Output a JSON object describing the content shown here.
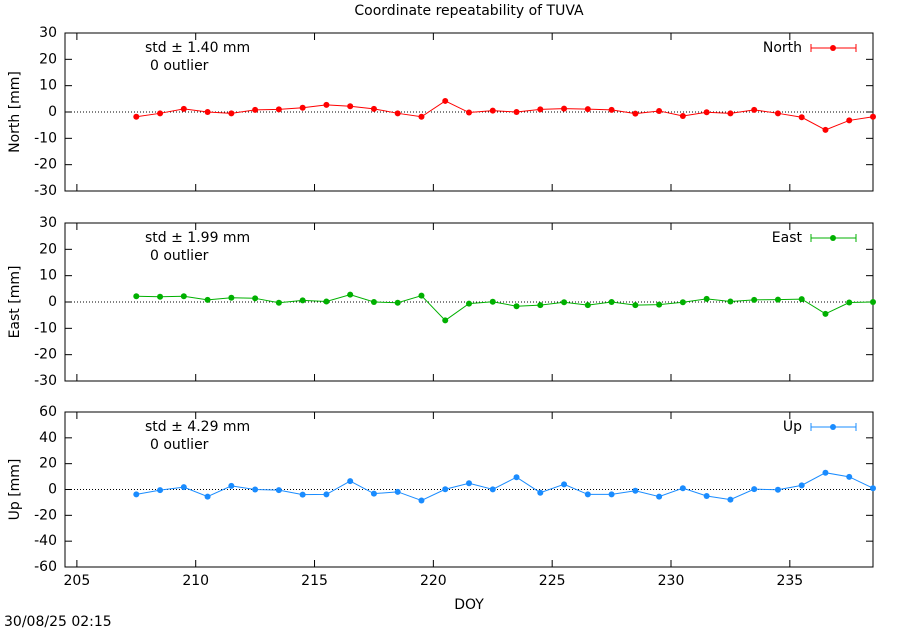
{
  "title": "Coordinate repeatability of TUVA",
  "timestamp": "30/08/25 02:15",
  "chart_data": [
    {
      "type": "line",
      "ylabel": "North [mm]",
      "annotations": [
        "std ± 1.40 mm",
        "0 outlier"
      ],
      "zero_line": true,
      "xlim": [
        204.5,
        238.5
      ],
      "ylim": [
        -30,
        30
      ],
      "yticks": [
        -30,
        -20,
        -10,
        0,
        10,
        20,
        30
      ],
      "legend": "top-right",
      "x": [
        207.5,
        208.5,
        209.5,
        210.5,
        211.5,
        212.5,
        213.5,
        214.5,
        215.5,
        216.5,
        217.5,
        218.5,
        219.5,
        220.5,
        221.5,
        222.5,
        223.5,
        224.5,
        225.5,
        226.5,
        227.5,
        228.5,
        229.5,
        230.5,
        231.5,
        232.5,
        233.5,
        234.5,
        235.5,
        236.5,
        237.5,
        238.5
      ],
      "series": [
        {
          "name": "North",
          "color": "#ff0000",
          "values": [
            -1.8,
            -0.5,
            1.2,
            0,
            -0.5,
            0.8,
            1,
            1.6,
            2.7,
            2.2,
            1.2,
            -0.5,
            -1.8,
            4.2,
            -0.2,
            0.5,
            0,
            1,
            1.3,
            1.1,
            0.8,
            -0.6,
            0.4,
            -1.5,
            -0.1,
            -0.5,
            0.8,
            -0.5,
            -2,
            -6.8,
            -3.2,
            -1.8
          ]
        }
      ]
    },
    {
      "type": "line",
      "ylabel": "East [mm]",
      "annotations": [
        "std ± 1.99 mm",
        "0 outlier"
      ],
      "zero_line": true,
      "xlim": [
        204.5,
        238.5
      ],
      "ylim": [
        -30,
        30
      ],
      "yticks": [
        -30,
        -20,
        -10,
        0,
        10,
        20,
        30
      ],
      "legend": "top-right",
      "x": [
        207.5,
        208.5,
        209.5,
        210.5,
        211.5,
        212.5,
        213.5,
        214.5,
        215.5,
        216.5,
        217.5,
        218.5,
        219.5,
        220.5,
        221.5,
        222.5,
        223.5,
        224.5,
        225.5,
        226.5,
        227.5,
        228.5,
        229.5,
        230.5,
        231.5,
        232.5,
        233.5,
        234.5,
        235.5,
        236.5,
        237.5,
        238.5
      ],
      "series": [
        {
          "name": "East",
          "color": "#00b000",
          "values": [
            2.2,
            2,
            2.2,
            0.8,
            1.6,
            1.4,
            -0.3,
            0.6,
            0.2,
            2.8,
            0,
            -0.3,
            2.4,
            -7,
            -0.6,
            0.1,
            -1.6,
            -1.2,
            -0.1,
            -1.2,
            0,
            -1.2,
            -1,
            -0.1,
            1.2,
            0.2,
            0.8,
            0.9,
            1.1,
            -4.5,
            -0.2,
            0
          ]
        }
      ]
    },
    {
      "type": "line",
      "ylabel": "Up [mm]",
      "xlabel": "DOY",
      "annotations": [
        "std ± 4.29 mm",
        "0 outlier"
      ],
      "zero_line": true,
      "xlim": [
        204.5,
        238.5
      ],
      "xticks": [
        205,
        210,
        215,
        220,
        225,
        230,
        235
      ],
      "ylim": [
        -60,
        60
      ],
      "yticks": [
        -60,
        -40,
        -20,
        0,
        20,
        40,
        60
      ],
      "legend": "top-right",
      "x": [
        207.5,
        208.5,
        209.5,
        210.5,
        211.5,
        212.5,
        213.5,
        214.5,
        215.5,
        216.5,
        217.5,
        218.5,
        219.5,
        220.5,
        221.5,
        222.5,
        223.5,
        224.5,
        225.5,
        226.5,
        227.5,
        228.5,
        229.5,
        230.5,
        231.5,
        232.5,
        233.5,
        234.5,
        235.5,
        236.5,
        237.5,
        238.5
      ],
      "series": [
        {
          "name": "Up",
          "color": "#1a8cff",
          "values": [
            -3.8,
            -0.5,
            1.8,
            -5.5,
            2.8,
            0,
            -0.5,
            -4,
            -3.8,
            6.5,
            -3.2,
            -1.8,
            -8.5,
            0.2,
            4.8,
            0.1,
            9.5,
            -2.5,
            4,
            -3.8,
            -3.8,
            -1,
            -5.5,
            1,
            -5,
            -7.8,
            0.3,
            -0.2,
            3.2,
            13,
            9.8,
            1
          ]
        }
      ]
    }
  ]
}
